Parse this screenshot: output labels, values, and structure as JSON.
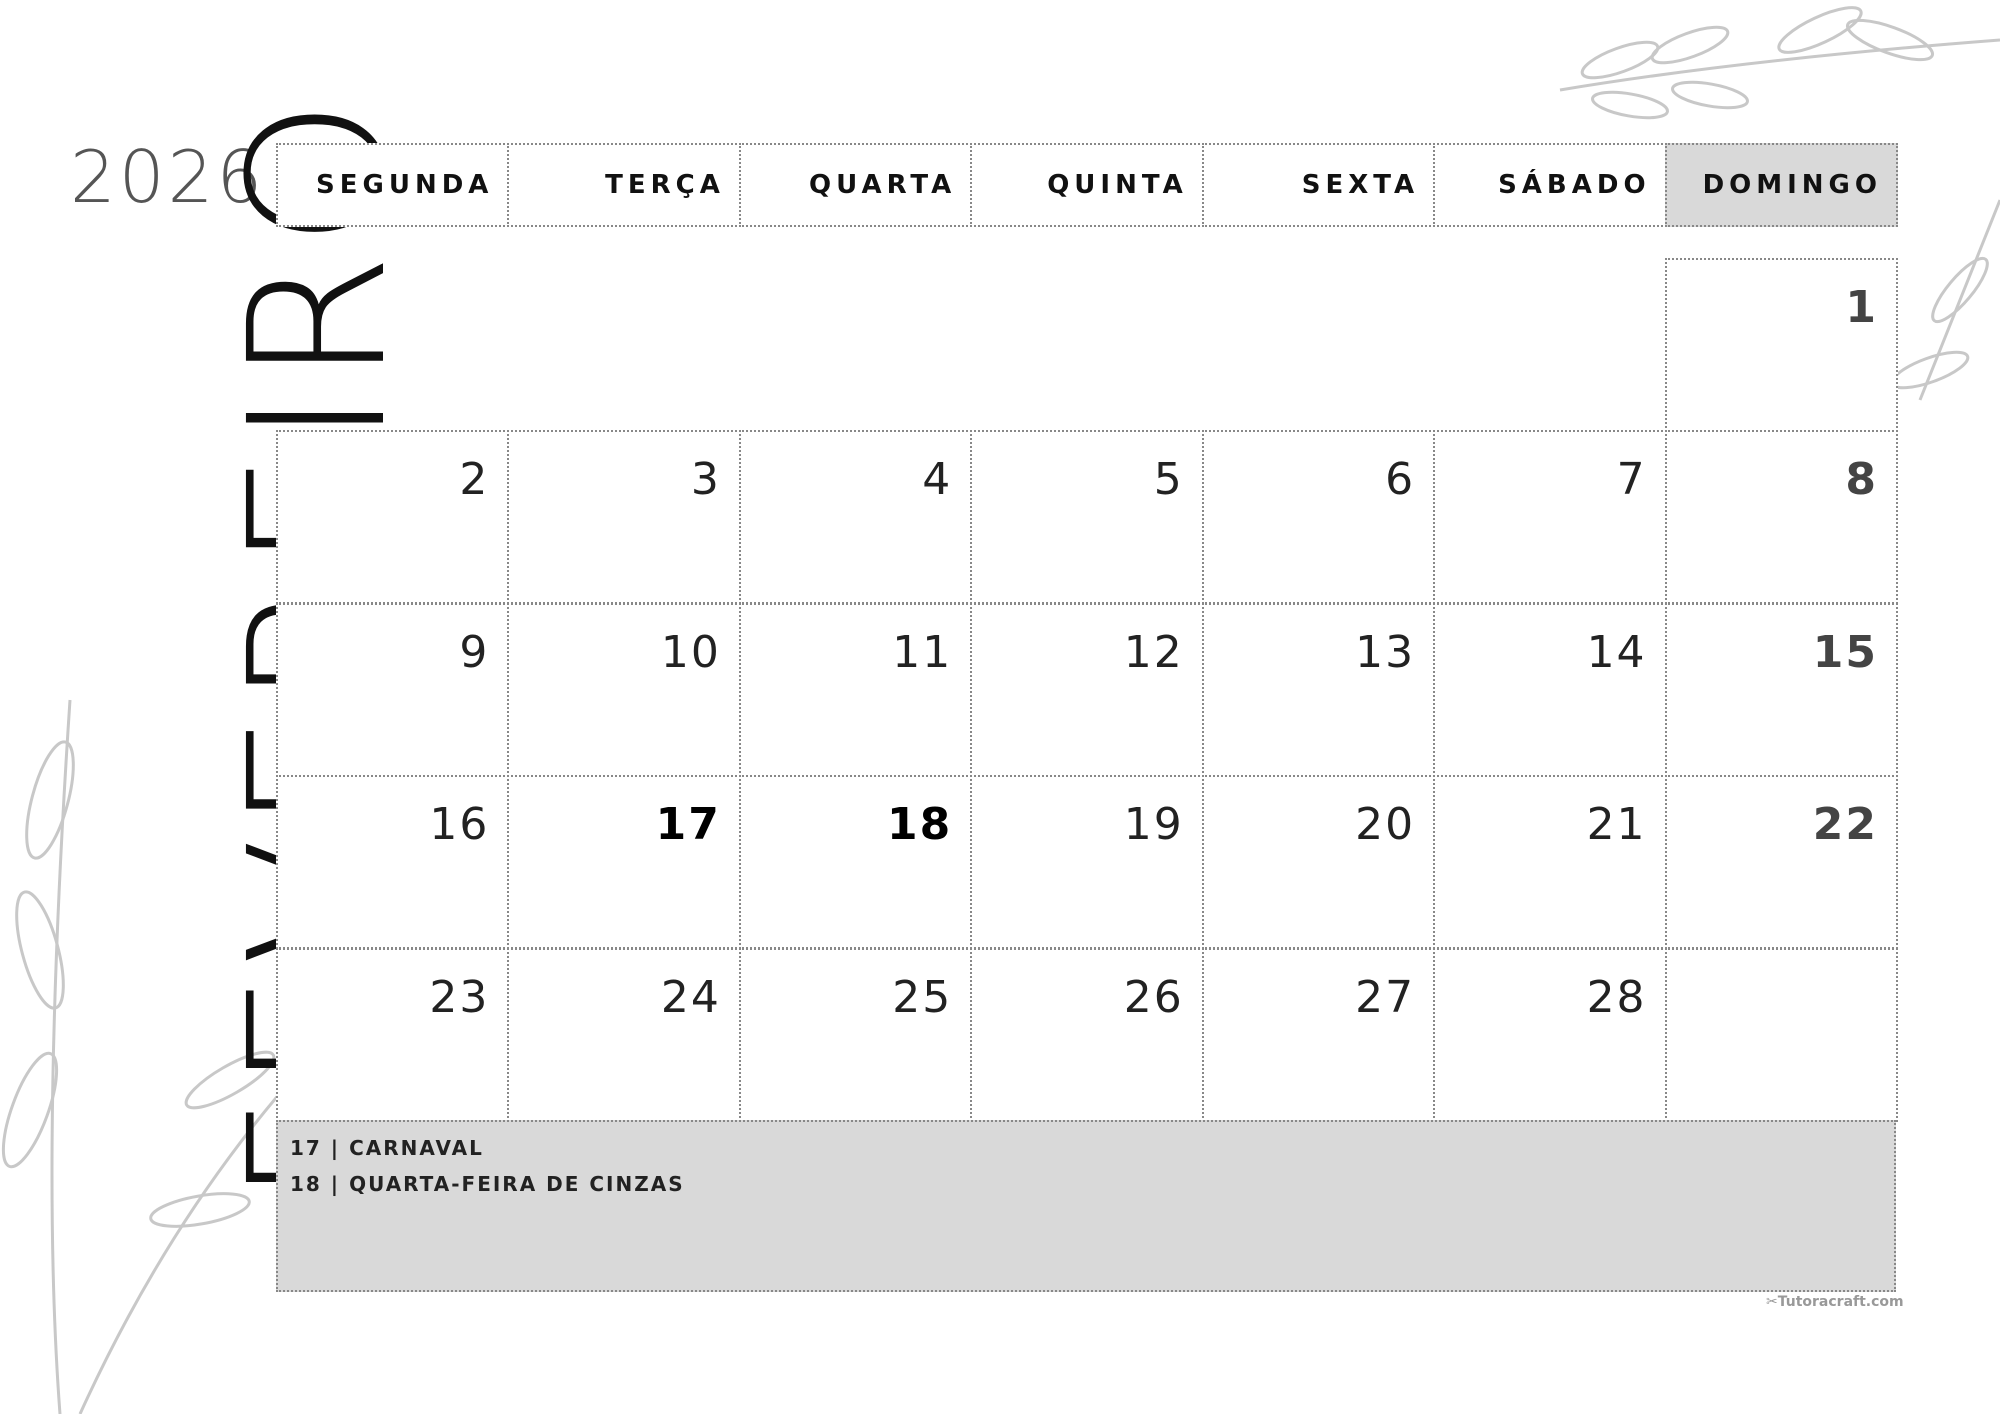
{
  "year": "2026",
  "month": "FEVEREIRO",
  "weekdays": [
    "SEGUNDA",
    "TERÇA",
    "QUARTA",
    "QUINTA",
    "SEXTA",
    "SÁBADO",
    "DOMINGO"
  ],
  "first_weekday_index": 6,
  "days": [
    "1",
    "2",
    "3",
    "4",
    "5",
    "6",
    "7",
    "8",
    "9",
    "10",
    "11",
    "12",
    "13",
    "14",
    "15",
    "16",
    "17",
    "18",
    "19",
    "20",
    "21",
    "22",
    "23",
    "24",
    "25",
    "26",
    "27",
    "28"
  ],
  "holidays": [
    "17",
    "18"
  ],
  "notes": [
    "17 | CARNAVAL",
    "18 | QUARTA-FEIRA DE CINZAS"
  ],
  "watermark": "✂Tutoracraft.com",
  "colors": {
    "sunday_header": "#d9d9d9",
    "notes_bg": "#d9d9d9",
    "text": "#111111"
  }
}
